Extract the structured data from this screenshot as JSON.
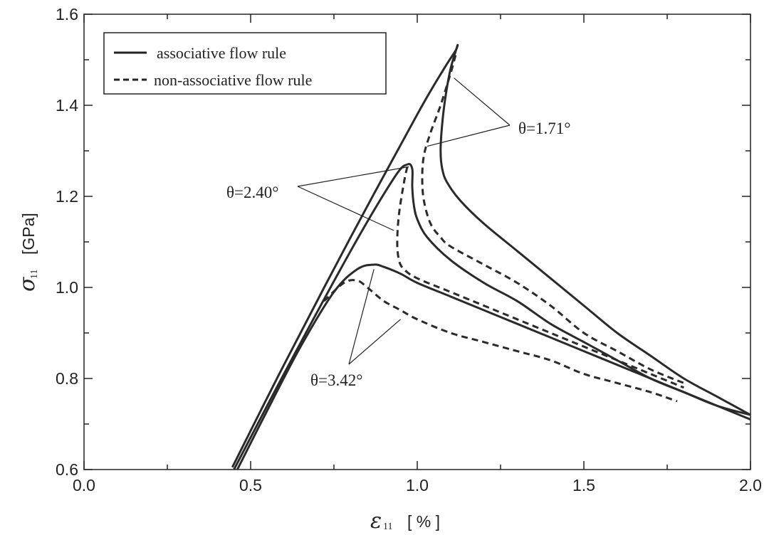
{
  "chart_data": {
    "type": "line",
    "xlabel": {
      "symbol": "ε",
      "subscript": "11",
      "unit": "[ % ]"
    },
    "ylabel": {
      "symbol": "σ",
      "subscript": "11",
      "unit": "[GPa]"
    },
    "xlim": [
      0.0,
      2.0
    ],
    "ylim": [
      0.6,
      1.6
    ],
    "x_ticks": [
      "0.0",
      "0.5",
      "1.0",
      "1.5",
      "2.0"
    ],
    "y_ticks": [
      "0.6",
      "0.8",
      "1.0",
      "1.2",
      "1.4",
      "1.6"
    ],
    "grid": false,
    "legend": {
      "position": "top-left",
      "entries": [
        {
          "label": "associative flow rule",
          "style": "solid"
        },
        {
          "label": "non-associative flow rule",
          "style": "dashed"
        }
      ]
    },
    "series": [
      {
        "group": "θ=1.71°",
        "style": "solid",
        "color": "#2a2a2a",
        "x": [
          0.445,
          0.6,
          0.8,
          1.0,
          1.08,
          1.115,
          1.12,
          1.1,
          1.085,
          1.075,
          1.07,
          1.075,
          1.09,
          1.13,
          1.2,
          1.3,
          1.4,
          1.5,
          1.6,
          1.7,
          1.8,
          1.9,
          2.0
        ],
        "y": [
          0.605,
          0.83,
          1.11,
          1.38,
          1.48,
          1.52,
          1.53,
          1.48,
          1.42,
          1.36,
          1.3,
          1.26,
          1.23,
          1.19,
          1.14,
          1.08,
          1.02,
          0.96,
          0.9,
          0.85,
          0.8,
          0.76,
          0.72
        ]
      },
      {
        "group": "θ=1.71°",
        "style": "dashed",
        "color": "#2a2a2a",
        "x": [
          1.115,
          1.1,
          1.07,
          1.04,
          1.02,
          1.015,
          1.02,
          1.04,
          1.07,
          1.1,
          1.2,
          1.3,
          1.4,
          1.5,
          1.6,
          1.7,
          1.8
        ],
        "y": [
          1.51,
          1.47,
          1.4,
          1.34,
          1.29,
          1.24,
          1.19,
          1.14,
          1.11,
          1.09,
          1.05,
          1.01,
          0.96,
          0.9,
          0.86,
          0.82,
          0.79
        ]
      },
      {
        "group": "θ=2.40°",
        "style": "solid",
        "color": "#2a2a2a",
        "x": [
          0.45,
          0.6,
          0.8,
          0.93,
          0.97,
          0.985,
          0.985,
          0.99,
          1.0,
          1.03,
          1.1,
          1.2,
          1.3,
          1.4,
          1.5,
          1.6,
          1.7,
          1.8,
          1.9,
          2.0
        ],
        "y": [
          0.6,
          0.81,
          1.08,
          1.24,
          1.27,
          1.26,
          1.22,
          1.18,
          1.15,
          1.11,
          1.06,
          1.01,
          0.97,
          0.92,
          0.88,
          0.84,
          0.8,
          0.77,
          0.74,
          0.72
        ]
      },
      {
        "group": "θ=2.40°",
        "style": "dashed",
        "color": "#2a2a2a",
        "x": [
          0.97,
          0.96,
          0.945,
          0.94,
          0.945,
          0.96,
          1.0,
          1.1,
          1.2,
          1.3,
          1.4,
          1.5,
          1.6,
          1.7,
          1.8
        ],
        "y": [
          1.265,
          1.23,
          1.16,
          1.1,
          1.06,
          1.04,
          1.02,
          0.99,
          0.96,
          0.93,
          0.9,
          0.87,
          0.84,
          0.81,
          0.78
        ]
      },
      {
        "group": "θ=3.42°",
        "style": "solid",
        "color": "#2a2a2a",
        "x": [
          0.46,
          0.55,
          0.65,
          0.75,
          0.82,
          0.87,
          0.9,
          0.95,
          1.0,
          1.1,
          1.2,
          1.3,
          1.4,
          1.5,
          1.6,
          1.7,
          1.8,
          1.9,
          2.0
        ],
        "y": [
          0.6,
          0.73,
          0.87,
          0.99,
          1.04,
          1.05,
          1.045,
          1.03,
          1.01,
          0.98,
          0.95,
          0.92,
          0.89,
          0.86,
          0.83,
          0.8,
          0.77,
          0.74,
          0.71
        ]
      },
      {
        "group": "θ=3.42°",
        "style": "dashed",
        "color": "#2a2a2a",
        "x": [
          0.72,
          0.78,
          0.82,
          0.85,
          0.9,
          0.95,
          1.0,
          1.1,
          1.2,
          1.3,
          1.4,
          1.5,
          1.6,
          1.7,
          1.78
        ],
        "y": [
          0.97,
          1.01,
          1.015,
          1.0,
          0.97,
          0.95,
          0.93,
          0.9,
          0.88,
          0.86,
          0.84,
          0.81,
          0.79,
          0.77,
          0.75
        ]
      }
    ],
    "annotations": [
      {
        "text": "θ=1.71°",
        "position": "right of upper peak"
      },
      {
        "text": "θ=2.40°",
        "position": "left of middle peak"
      },
      {
        "text": "θ=3.42°",
        "position": "below lower peak"
      }
    ]
  }
}
